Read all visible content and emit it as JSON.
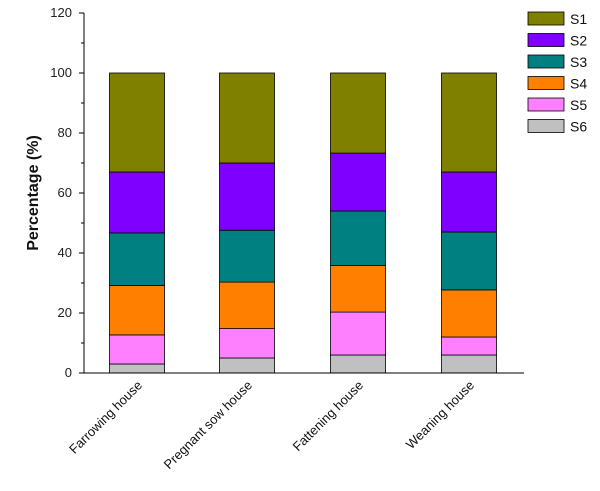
{
  "chart_data": {
    "type": "bar",
    "stacked": true,
    "xlabel": "",
    "ylabel": "Percentage (%)",
    "ylim": [
      0,
      120
    ],
    "yticks": [
      "0",
      "20",
      "40",
      "60",
      "80",
      "100",
      "120"
    ],
    "grid": false,
    "legend_position": "top-right",
    "categories": [
      "Farrowing house",
      "Pregnant sow house",
      "Fattening house",
      "Weaning house"
    ],
    "series": [
      {
        "name": "S6",
        "color": "#c0c0c0",
        "values": [
          3,
          5,
          6,
          6
        ]
      },
      {
        "name": "S5",
        "color": "#ff80ff",
        "values": [
          9.7,
          9.8,
          14.3,
          6
        ]
      },
      {
        "name": "S4",
        "color": "#ff8000",
        "values": [
          16.5,
          15.5,
          15.5,
          15.7
        ]
      },
      {
        "name": "S3",
        "color": "#008080",
        "values": [
          17.5,
          17.3,
          18.2,
          19.3
        ]
      },
      {
        "name": "S2",
        "color": "#8000ff",
        "values": [
          20.3,
          22.4,
          19.3,
          20
        ]
      },
      {
        "name": "S1",
        "color": "#808000",
        "values": [
          33,
          30,
          26.7,
          33
        ]
      }
    ],
    "legend": [
      "S1",
      "S2",
      "S3",
      "S4",
      "S5",
      "S6"
    ]
  }
}
